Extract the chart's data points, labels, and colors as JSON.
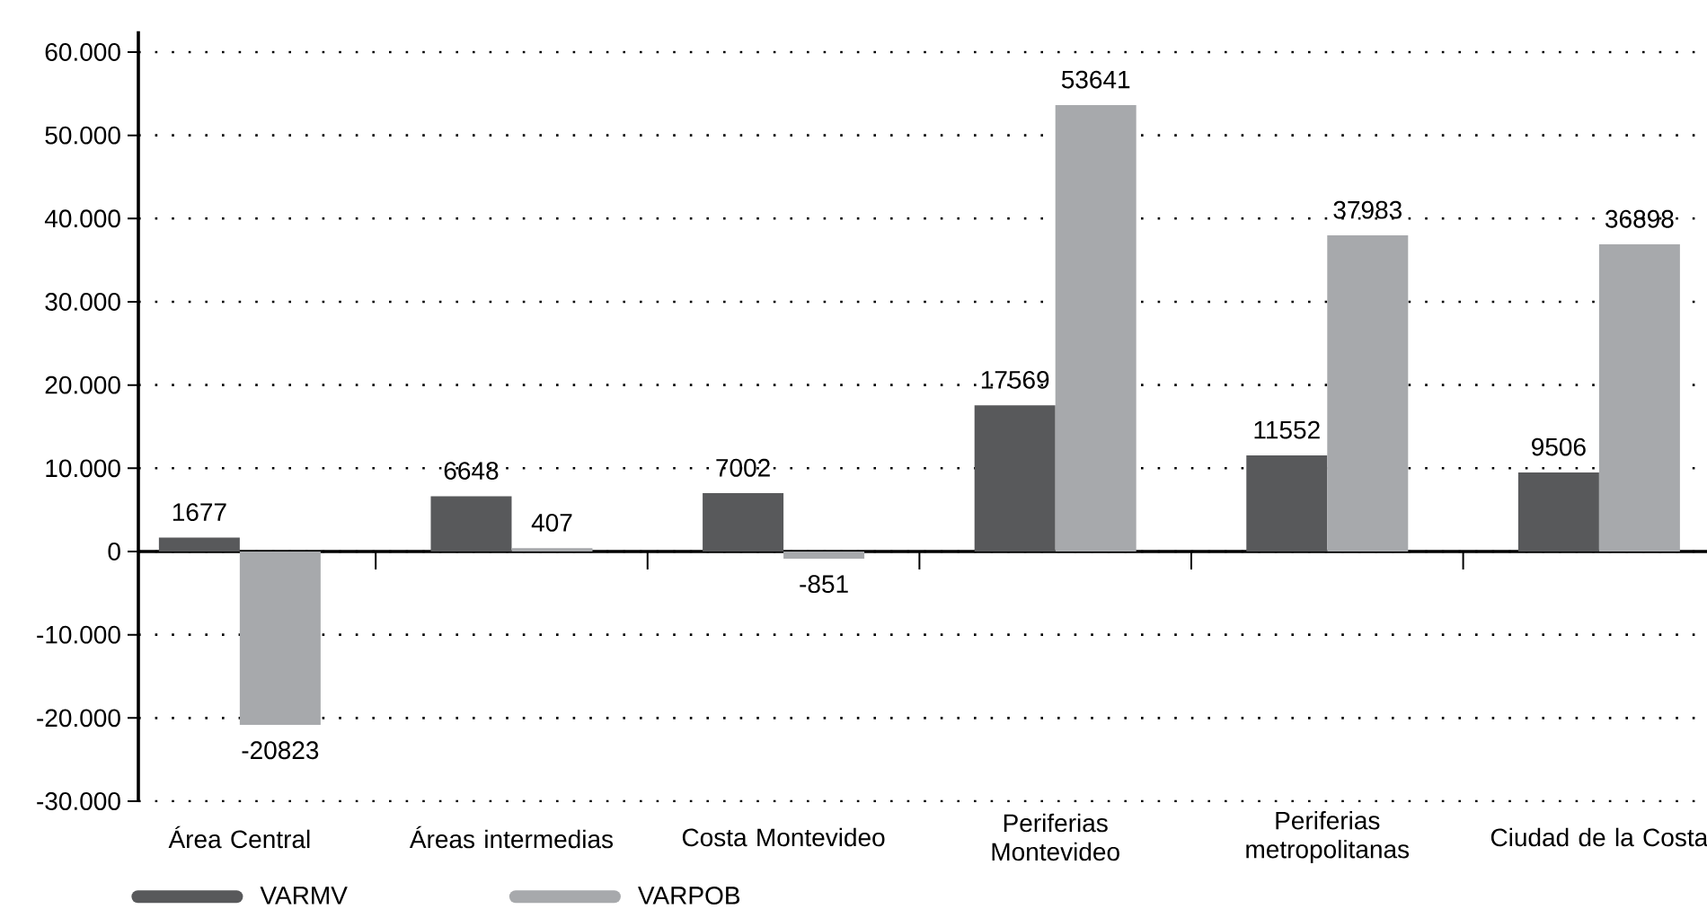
{
  "chart_data": {
    "type": "bar",
    "categories": [
      "Área Central",
      "Áreas intermedias",
      "Costa Montevideo",
      "Periferias Montevideo",
      "Periferias metropolitanas",
      "Ciudad de la Costa"
    ],
    "series": [
      {
        "name": "VARMV",
        "color": "#58595b",
        "values": [
          1677,
          6648,
          7002,
          17569,
          11552,
          9506
        ]
      },
      {
        "name": "VARPOB",
        "color": "#a7a9ac",
        "values": [
          -20823,
          407,
          -851,
          53641,
          37983,
          36898
        ]
      }
    ],
    "ylim": [
      -30000,
      62500
    ],
    "yticks": [
      {
        "value": -30000,
        "label": "-30.000"
      },
      {
        "value": -20000,
        "label": "-20.000"
      },
      {
        "value": -10000,
        "label": "-10.000"
      },
      0,
      {
        "value": 10000,
        "label": "10.000"
      },
      {
        "value": 20000,
        "label": "20.000"
      },
      {
        "value": 30000,
        "label": "30.000"
      },
      {
        "value": 40000,
        "label": "40.000"
      },
      {
        "value": 50000,
        "label": "50.000"
      },
      {
        "value": 60000,
        "label": "60.000"
      }
    ],
    "grid": "y",
    "legend": "bottom",
    "data_labels": true
  }
}
